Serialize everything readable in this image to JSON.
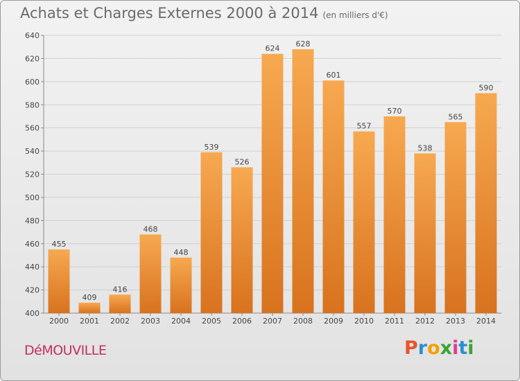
{
  "title": "Achats et Charges Externes 2000 à 2014",
  "subtitle": "(en milliers d'€)",
  "commune": "DéMOUVILLE",
  "logo": {
    "letters": [
      "P",
      "r",
      "o",
      "x",
      "i",
      "t",
      "i"
    ],
    "colors": [
      "#e8552a",
      "#2b8fd6",
      "#f2a000",
      "#3aa335",
      "#e23b8a",
      "#2b8fd6",
      "#3aa335"
    ]
  },
  "colors": {
    "bar_top": "#f7a950",
    "bar_bottom": "#d8721e",
    "grid": "#cfcfcf",
    "axis": "#8a8a8a",
    "text": "#444444"
  },
  "chart_data": {
    "type": "bar",
    "categories": [
      "2000",
      "2001",
      "2002",
      "2003",
      "2004",
      "2005",
      "2006",
      "2007",
      "2008",
      "2009",
      "2010",
      "2011",
      "2012",
      "2013",
      "2014"
    ],
    "values": [
      455,
      409,
      416,
      468,
      448,
      539,
      526,
      624,
      628,
      601,
      557,
      570,
      538,
      565,
      590
    ],
    "ylim": [
      400,
      640
    ],
    "yticks": [
      400,
      420,
      440,
      460,
      480,
      500,
      520,
      540,
      560,
      580,
      600,
      620,
      640
    ],
    "grid": true
  }
}
